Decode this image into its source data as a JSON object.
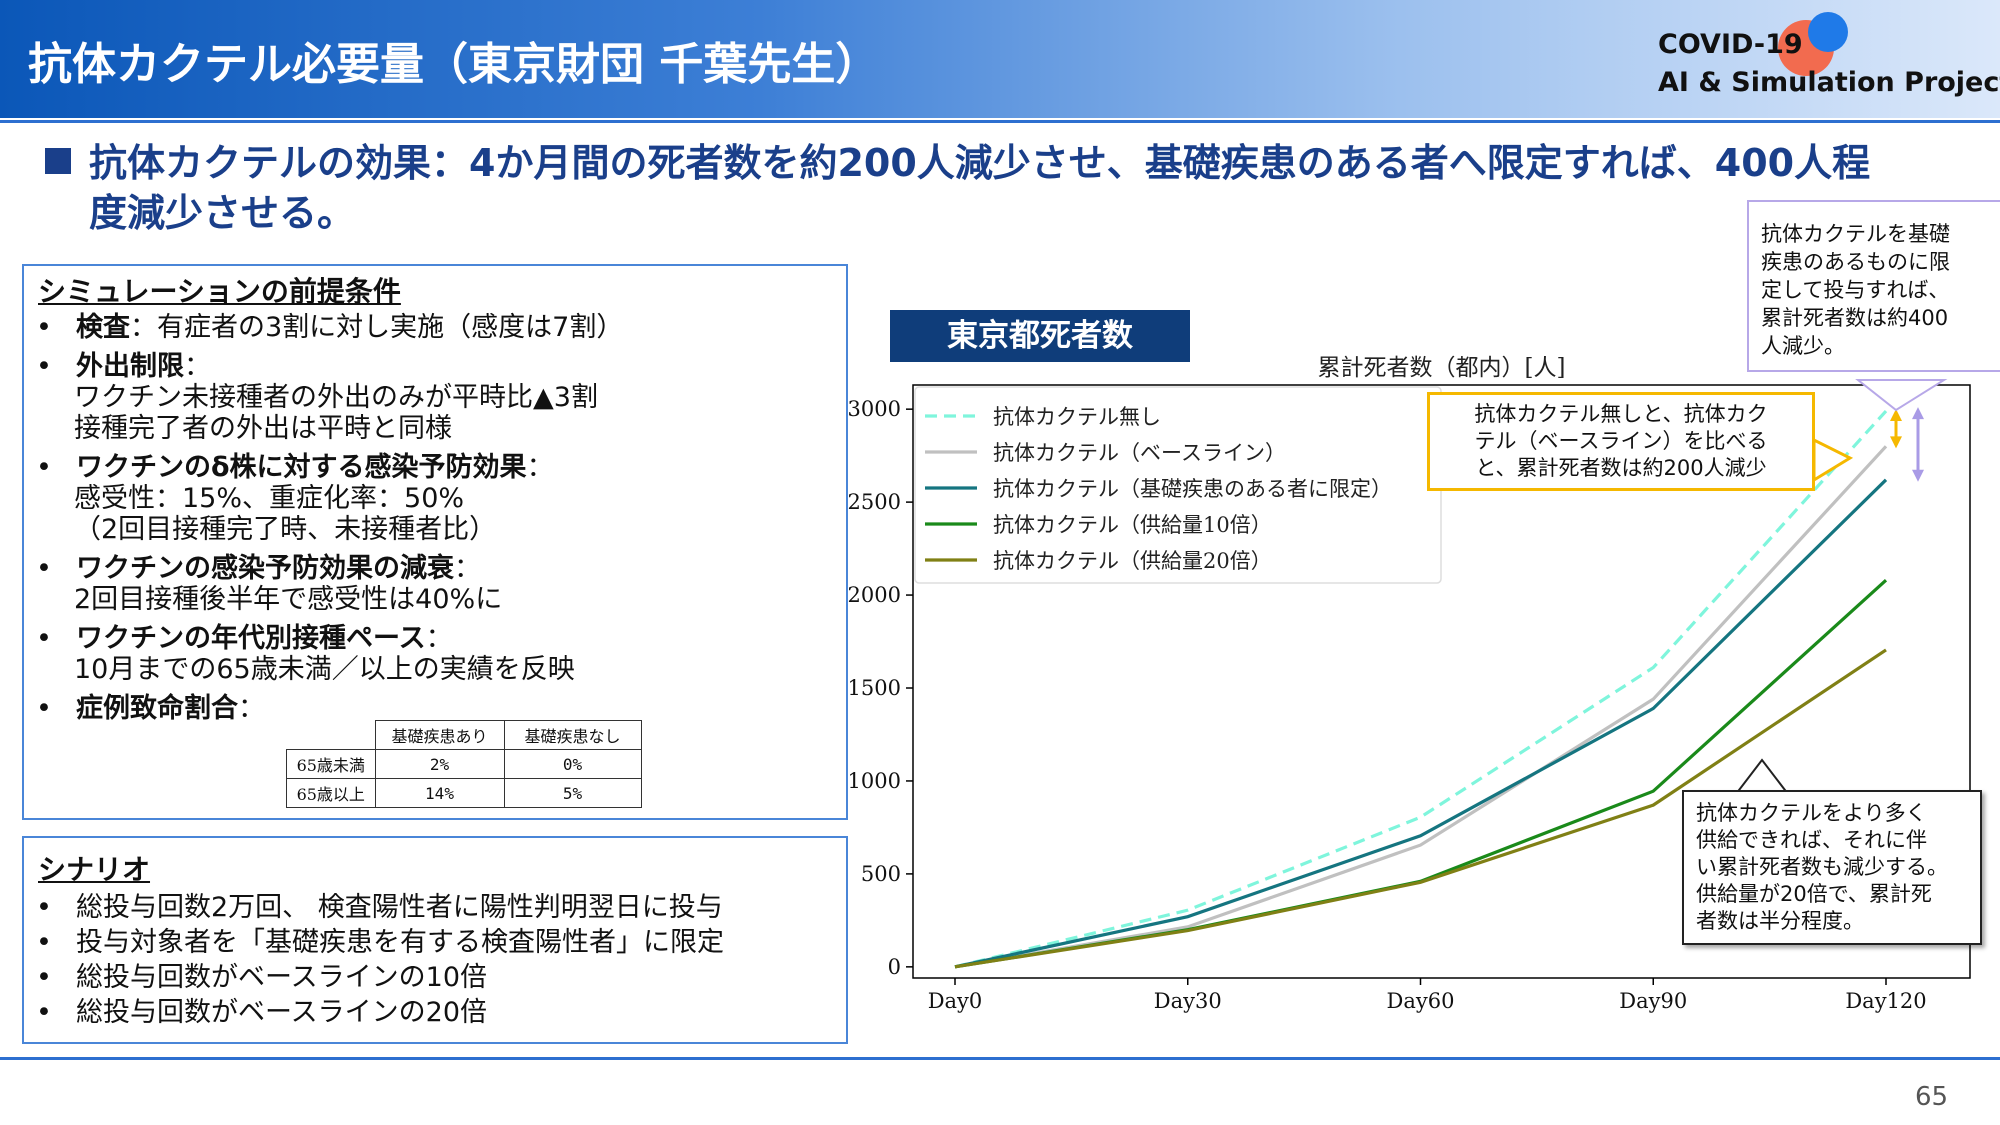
{
  "header": {
    "title": "抗体カクテル必要量（東京財団 千葉先生）",
    "logo_line1": "COVID-19",
    "logo_line2": "AI & Simulation Project"
  },
  "headline": {
    "line1": "抗体カクテルの効果：4か月間の死者数を約200人減少させ、基礎疾患のある者へ限定すれば、400人程",
    "line2": "度減少させる。"
  },
  "premise": {
    "heading": "シミュレーションの前提条件",
    "items": [
      {
        "label": "検査",
        "text": "：有症者の3割に対し実施（感度は7割）",
        "sub": []
      },
      {
        "label": "外出制限",
        "text": "：",
        "sub": [
          "ワクチン未接種者の外出のみが平時比▲3割",
          "接種完了者の外出は平時と同様"
        ]
      },
      {
        "label": "ワクチンのδ株に対する感染予防効果",
        "text": "：",
        "sub": [
          "感受性：15%、重症化率：50%",
          "（2回目接種完了時、未接種者比）"
        ]
      },
      {
        "label": "ワクチンの感染予防効果の減衰",
        "text": "：",
        "sub": [
          "2回目接種後半年で感受性は40%に"
        ]
      },
      {
        "label": "ワクチンの年代別接種ペース",
        "text": "：",
        "sub": [
          "10月までの65歳未満／以上の実績を反映"
        ]
      },
      {
        "label": "症例致命割合",
        "text": "：",
        "sub": []
      }
    ],
    "fatality_table": {
      "headers": [
        "",
        "基礎疾患あり",
        "基礎疾患なし"
      ],
      "rows": [
        [
          "65歳未満",
          "2%",
          "0%"
        ],
        [
          "65歳以上",
          "14%",
          "5%"
        ]
      ]
    }
  },
  "scenario": {
    "heading": "シナリオ",
    "items": [
      "総投与回数2万回、 検査陽性者に陽性判明翌日に投与",
      "投与対象者を「基礎疾患を有する検査陽性者」に限定",
      "総投与回数がベースラインの10倍",
      "総投与回数がベースラインの20倍"
    ]
  },
  "chart_title": "東京都死者数",
  "callouts": {
    "top": [
      "抗体カクテルを基礎",
      "疾患のあるものに限",
      "定して投与すれば、",
      "累計死者数は約400",
      "人減少。"
    ],
    "middle": [
      "抗体カクテル無しと、抗体カク",
      "テル（ベースライン）を比べる",
      "と、累計死者数は約200人減少"
    ],
    "bottom": [
      "抗体カクテルをより多く",
      "供給できれば、それに伴",
      "い累計死者数も減少する。",
      "供給量が20倍で、累計死",
      "者数は半分程度。"
    ]
  },
  "chart_data": {
    "type": "line",
    "title": "累計死者数（都内）[人]",
    "categories": [
      "Day0",
      "Day30",
      "Day60",
      "Day90",
      "Day120"
    ],
    "ylim": [
      -60,
      3130
    ],
    "yticks": [
      0,
      500,
      1000,
      1500,
      2000,
      2500,
      3000
    ],
    "grid": false,
    "legend_position": "top-left",
    "series": [
      {
        "name": "抗体カクテル無し",
        "color": "#7ff5dc",
        "dash": true,
        "values": [
          0,
          305,
          805,
          1610,
          2990
        ]
      },
      {
        "name": "抗体カクテル（ベースライン）",
        "color": "#c0c0c0",
        "dash": false,
        "values": [
          0,
          215,
          655,
          1440,
          2800
        ]
      },
      {
        "name": "抗体カクテル（基礎疾患のある者に限定）",
        "color": "#157580",
        "dash": false,
        "values": [
          0,
          270,
          705,
          1390,
          2620
        ]
      },
      {
        "name": "抗体カクテル（供給量10倍）",
        "color": "#1a8a1a",
        "dash": false,
        "values": [
          0,
          200,
          460,
          945,
          2080
        ]
      },
      {
        "name": "抗体カクテル（供給量20倍）",
        "color": "#808015",
        "dash": false,
        "values": [
          0,
          195,
          455,
          870,
          1705
        ]
      }
    ]
  },
  "page_number": "65"
}
